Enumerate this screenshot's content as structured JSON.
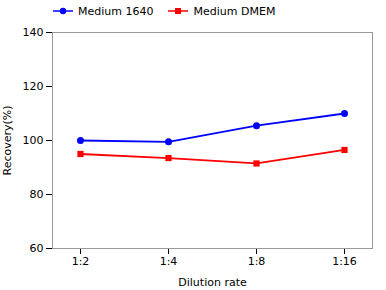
{
  "chart_data": {
    "type": "line",
    "categories": [
      "1:2",
      "1:4",
      "1:8",
      "1:16"
    ],
    "series": [
      {
        "name": "Medium 1640",
        "color": "#0000FF",
        "marker": "circle",
        "values": [
          100,
          99.5,
          105.5,
          110
        ]
      },
      {
        "name": "Medium DMEM",
        "color": "#FF0000",
        "marker": "square",
        "values": [
          95,
          93.5,
          91.5,
          96.5
        ]
      }
    ],
    "xlabel": "Dilution rate",
    "ylabel": "Recovery(%)",
    "ylim": [
      60,
      140
    ],
    "yticks": [
      60,
      80,
      100,
      120,
      140
    ],
    "legend": "upper left"
  }
}
